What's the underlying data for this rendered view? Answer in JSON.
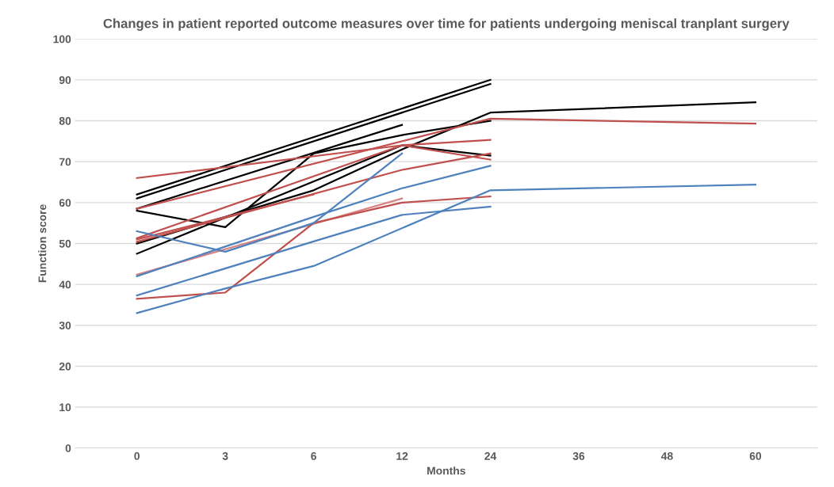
{
  "chart_data": {
    "type": "line",
    "title": "Changes in patient reported outcome measures over time for patients undergoing meniscal tranplant surgery",
    "xlabel": "Months",
    "ylabel": "Function score",
    "categories": [
      "0",
      "3",
      "6",
      "12",
      "24",
      "36",
      "48",
      "60"
    ],
    "ylim": [
      0,
      100
    ],
    "yticks": [
      0,
      10,
      20,
      30,
      40,
      50,
      60,
      70,
      80,
      90,
      100
    ],
    "grid": "y",
    "marker": "none",
    "line_style": "solid",
    "series": [
      {
        "color": "#000000",
        "x": [
          "0",
          "24"
        ],
        "values": [
          62,
          90
        ]
      },
      {
        "color": "#000000",
        "x": [
          "0",
          "24"
        ],
        "values": [
          61,
          89
        ]
      },
      {
        "color": "#000000",
        "x": [
          "0",
          "12"
        ],
        "values": [
          58.5,
          79
        ]
      },
      {
        "color": "#000000",
        "x": [
          "0",
          "3",
          "6",
          "12",
          "24"
        ],
        "values": [
          58,
          54,
          72,
          76.5,
          80
        ]
      },
      {
        "color": "#000000",
        "x": [
          "0",
          "6",
          "12",
          "24",
          "60"
        ],
        "values": [
          50,
          63,
          73,
          82,
          84.5
        ]
      },
      {
        "color": "#000000",
        "x": [
          "0",
          "12",
          "24"
        ],
        "values": [
          47.5,
          74,
          71.5
        ]
      },
      {
        "color": "#c0504d",
        "x": [
          "0",
          "12",
          "24"
        ],
        "values": [
          66,
          74,
          75.3
        ]
      },
      {
        "color": "#c0504d",
        "x": [
          "0",
          "24",
          "60"
        ],
        "values": [
          58.5,
          80.5,
          79.3
        ]
      },
      {
        "color": "#c0504d",
        "x": [
          "0",
          "12",
          "24"
        ],
        "values": [
          51.3,
          74,
          70.5
        ]
      },
      {
        "color": "#c0504d",
        "x": [
          "0",
          "12",
          "24"
        ],
        "values": [
          50.4,
          68,
          72
        ]
      },
      {
        "color": "#c0504d",
        "x": [
          "0",
          "6"
        ],
        "values": [
          51,
          62
        ]
      },
      {
        "color": "#d98080",
        "x": [
          "0",
          "12"
        ],
        "values": [
          42.4,
          61
        ]
      },
      {
        "color": "#c0504d",
        "x": [
          "0",
          "3",
          "6",
          "12",
          "24"
        ],
        "values": [
          36.5,
          38,
          55,
          60,
          61.5
        ]
      },
      {
        "color": "#4f81bd",
        "x": [
          "0",
          "3",
          "6",
          "12"
        ],
        "values": [
          53,
          48,
          55,
          72
        ]
      },
      {
        "color": "#4f81bd",
        "x": [
          "0",
          "6",
          "12",
          "24"
        ],
        "values": [
          42,
          56.5,
          63.5,
          69
        ]
      },
      {
        "color": "#4f81bd",
        "x": [
          "0",
          "6",
          "12",
          "24"
        ],
        "values": [
          37.3,
          50.5,
          57,
          59
        ]
      },
      {
        "color": "#4f81bd",
        "x": [
          "0",
          "3",
          "6",
          "24",
          "60"
        ],
        "values": [
          33,
          39,
          44.5,
          63,
          64.4
        ]
      }
    ]
  }
}
